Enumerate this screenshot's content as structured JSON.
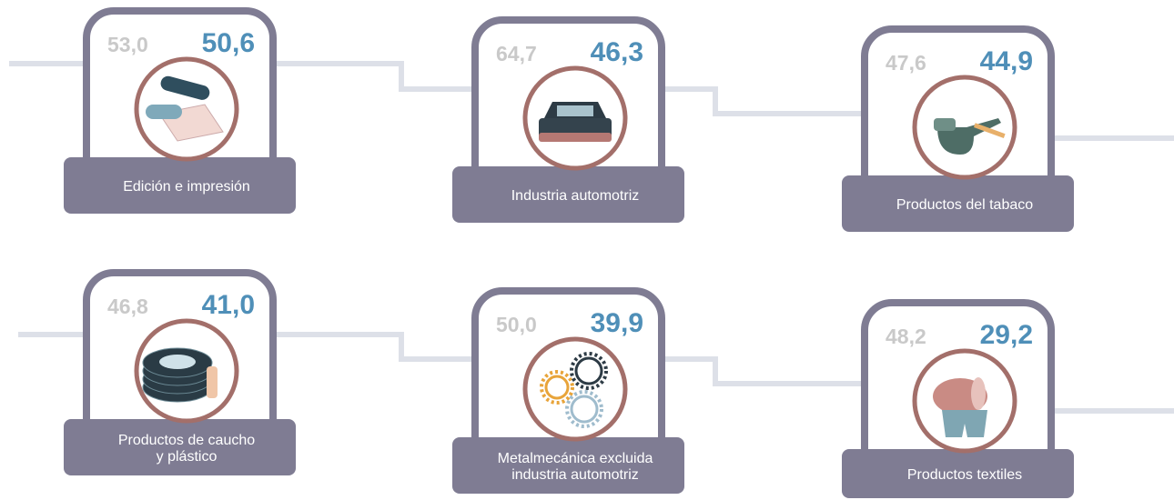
{
  "cards": [
    {
      "previous": "53,0",
      "current": "50,6",
      "label": [
        "Edición e impresión"
      ]
    },
    {
      "previous": "64,7",
      "current": "46,3",
      "label": [
        "Industria automotriz"
      ]
    },
    {
      "previous": "47,6",
      "current": "44,9",
      "label": [
        "Productos del tabaco"
      ]
    },
    {
      "previous": "46,8",
      "current": "41,0",
      "label": [
        "Productos de caucho",
        "y plástico"
      ]
    },
    {
      "previous": "50,0",
      "current": "39,9",
      "label": [
        "Metalmecánica excluida",
        "industria automotriz"
      ]
    },
    {
      "previous": "48,2",
      "current": "29,2",
      "label": [
        "Productos textiles"
      ]
    }
  ]
}
